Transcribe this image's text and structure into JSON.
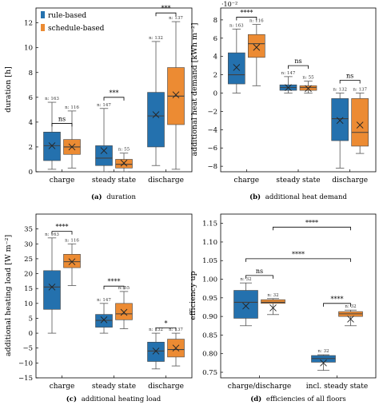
{
  "colors": {
    "rule": "#2471ae",
    "schedule": "#ec8b33",
    "median": "#404040",
    "axis": "#000000"
  },
  "legend": {
    "items": [
      {
        "label": "rule-based",
        "color": "#2471ae"
      },
      {
        "label": "schedule-based",
        "color": "#ec8b33"
      }
    ],
    "placement": "top-left"
  },
  "chart_data": [
    {
      "id": "a",
      "type": "box",
      "caption_letter": "(a)",
      "caption_text": "duration",
      "ylabel": "duration [h]",
      "ylim": [
        0,
        13.2
      ],
      "yticks": [
        0,
        2,
        4,
        6,
        8,
        10,
        12
      ],
      "ytick_labels": [
        "0",
        "2",
        "4",
        "6",
        "8",
        "10",
        "12"
      ],
      "exponent_label": "",
      "categories": [
        "charge",
        "steady state",
        "discharge"
      ],
      "series": [
        {
          "name": "rule-based",
          "boxes": [
            {
              "min": 0.2,
              "q1": 0.9,
              "median": 2.1,
              "q3": 3.2,
              "max": 5.6,
              "mean": 2.1,
              "n": "n: 163"
            },
            {
              "min": 0.0,
              "q1": 0.5,
              "median": 1.1,
              "q3": 2.1,
              "max": 5.1,
              "mean": 1.7,
              "n": "n: 147"
            },
            {
              "min": 0.5,
              "q1": 2.0,
              "median": 4.5,
              "q3": 6.4,
              "max": 10.5,
              "mean": 4.6,
              "n": "n: 132"
            }
          ]
        },
        {
          "name": "schedule-based",
          "boxes": [
            {
              "min": 0.3,
              "q1": 1.4,
              "median": 2.0,
              "q3": 2.6,
              "max": 4.9,
              "mean": 2.0,
              "n": "n: 116"
            },
            {
              "min": 0.0,
              "q1": 0.3,
              "median": 0.6,
              "q3": 1.0,
              "max": 1.5,
              "mean": 0.7,
              "n": "n: 55"
            },
            {
              "min": 0.2,
              "q1": 3.8,
              "median": 6.1,
              "q3": 8.4,
              "max": 12.1,
              "mean": 6.2,
              "n": "n: 137"
            }
          ]
        }
      ],
      "sig": [
        {
          "label": "ns",
          "cat": 0,
          "y": 3.9
        },
        {
          "label": "***",
          "cat": 1,
          "y": 6.0
        },
        {
          "label": "***",
          "cat": 2,
          "y": 12.8
        }
      ]
    },
    {
      "id": "b",
      "type": "box",
      "caption_letter": "(b)",
      "caption_text": "additional heat demand",
      "ylabel": "additional heat demand [kWh m⁻²]",
      "ylim": [
        -8.6,
        9.3
      ],
      "yticks": [
        -8,
        -6,
        -4,
        -2,
        0,
        2,
        4,
        6,
        8
      ],
      "ytick_labels": [
        "−8",
        "−6",
        "−4",
        "−2",
        "0",
        "2",
        "4",
        "6",
        "8"
      ],
      "exponent_label": "·10⁻²",
      "categories": [
        "charge",
        "steady state",
        "discharge"
      ],
      "series": [
        {
          "name": "rule-based",
          "boxes": [
            {
              "min": 0.0,
              "q1": 1.0,
              "median": 2.0,
              "q3": 4.4,
              "max": 7.0,
              "mean": 2.8,
              "n": "n: 163"
            },
            {
              "min": 0.0,
              "q1": 0.3,
              "median": 0.6,
              "q3": 0.9,
              "max": 1.8,
              "mean": 0.6,
              "n": "n: 147"
            },
            {
              "min": -8.2,
              "q1": -5.2,
              "median": -2.8,
              "q3": -0.6,
              "max": 0.0,
              "mean": -3.0,
              "n": "n: 132"
            }
          ]
        },
        {
          "name": "schedule-based",
          "boxes": [
            {
              "min": 0.8,
              "q1": 3.9,
              "median": 5.4,
              "q3": 6.4,
              "max": 7.5,
              "mean": 5.0,
              "n": "n: 116"
            },
            {
              "min": 0.0,
              "q1": 0.3,
              "median": 0.6,
              "q3": 0.8,
              "max": 1.3,
              "mean": 0.5,
              "n": "n: 55"
            },
            {
              "min": -6.6,
              "q1": -5.8,
              "median": -4.3,
              "q3": -0.6,
              "max": 0.0,
              "mean": -3.5,
              "n": "n: 137"
            }
          ]
        }
      ],
      "sig": [
        {
          "label": "****",
          "cat": 0,
          "y": 8.3
        },
        {
          "label": "ns",
          "cat": 1,
          "y": 3.0
        },
        {
          "label": "ns",
          "cat": 2,
          "y": 1.4
        }
      ]
    },
    {
      "id": "c",
      "type": "box",
      "caption_letter": "(c)",
      "caption_text": "additional heating load",
      "ylabel": "additional heating load [W m⁻²]",
      "ylim": [
        -15,
        40
      ],
      "yticks": [
        -15,
        -10,
        -5,
        0,
        5,
        10,
        15,
        20,
        25,
        30,
        35
      ],
      "ytick_labels": [
        "−15",
        "−10",
        "−5",
        "0",
        "5",
        "10",
        "15",
        "20",
        "25",
        "30",
        "35"
      ],
      "exponent_label": "",
      "categories": [
        "charge",
        "steady state",
        "discharge"
      ],
      "series": [
        {
          "name": "rule-based",
          "boxes": [
            {
              "min": 0.0,
              "q1": 8.0,
              "median": 15.5,
              "q3": 21.0,
              "max": 32.0,
              "mean": 15.5,
              "n": "n: 163"
            },
            {
              "min": 0.0,
              "q1": 2.0,
              "median": 4.3,
              "q3": 6.3,
              "max": 10.0,
              "mean": 4.5,
              "n": "n: 147"
            },
            {
              "min": -12.0,
              "q1": -9.5,
              "median": -6.0,
              "q3": -3.0,
              "max": 0.0,
              "mean": -6.0,
              "n": "n: 132"
            }
          ]
        },
        {
          "name": "schedule-based",
          "boxes": [
            {
              "min": 16.0,
              "q1": 22.0,
              "median": 24.0,
              "q3": 26.5,
              "max": 30.0,
              "mean": 24.0,
              "n": "n: 116"
            },
            {
              "min": 1.5,
              "q1": 4.5,
              "median": 6.5,
              "q3": 10.0,
              "max": 14.0,
              "mean": 7.0,
              "n": "n: 55"
            },
            {
              "min": -11.0,
              "q1": -8.0,
              "median": -5.5,
              "q3": -2.0,
              "max": 0.0,
              "mean": -5.0,
              "n": "n: 137"
            }
          ]
        }
      ],
      "sig": [
        {
          "label": "****",
          "cat": 0,
          "y": 34.2
        },
        {
          "label": "****",
          "cat": 1,
          "y": 15.8
        },
        {
          "label": "*",
          "cat": 2,
          "y": 1.8
        }
      ]
    },
    {
      "id": "d",
      "type": "box",
      "caption_letter": "(d)",
      "caption_text": "efficiencies of all floors",
      "ylabel": "efficiency up",
      "ylim": [
        0.735,
        1.175
      ],
      "yticks": [
        0.75,
        0.8,
        0.85,
        0.9,
        0.95,
        1.0,
        1.05,
        1.1,
        1.15
      ],
      "ytick_labels": [
        "0.75",
        "0.80",
        "0.85",
        "0.90",
        "0.95",
        "1.00",
        "1.05",
        "1.10",
        "1.15"
      ],
      "exponent_label": "",
      "categories": [
        "charge/discharge",
        "incl. steady state"
      ],
      "series": [
        {
          "name": "rule-based",
          "boxes": [
            {
              "min": 0.875,
              "q1": 0.895,
              "median": 0.938,
              "q3": 0.97,
              "max": 0.99,
              "mean": 0.928,
              "n": "n: 32"
            },
            {
              "min": 0.755,
              "q1": 0.777,
              "median": 0.787,
              "q3": 0.795,
              "max": 0.797,
              "mean": 0.775,
              "n": "n: 32"
            }
          ]
        },
        {
          "name": "schedule-based",
          "boxes": [
            {
              "min": 0.905,
              "q1": 0.935,
              "median": 0.938,
              "q3": 0.945,
              "max": 0.948,
              "mean": 0.923,
              "n": "n: 32"
            },
            {
              "min": 0.875,
              "q1": 0.9,
              "median": 0.907,
              "q3": 0.913,
              "max": 0.917,
              "mean": 0.893,
              "n": "n: 32"
            }
          ]
        }
      ],
      "sig": [
        {
          "label": "ns",
          "x1": -0.2,
          "x2": 0.2,
          "y": 1.01
        },
        {
          "label": "****",
          "x1": 1.2,
          "x2": -0.2,
          "y": 1.055
        },
        {
          "label": "****",
          "x1": 0.2,
          "x2": 1.2,
          "y": 1.14
        },
        {
          "label": "****",
          "x1": 0.8,
          "x2": 1.2,
          "y": 0.935
        }
      ]
    }
  ]
}
